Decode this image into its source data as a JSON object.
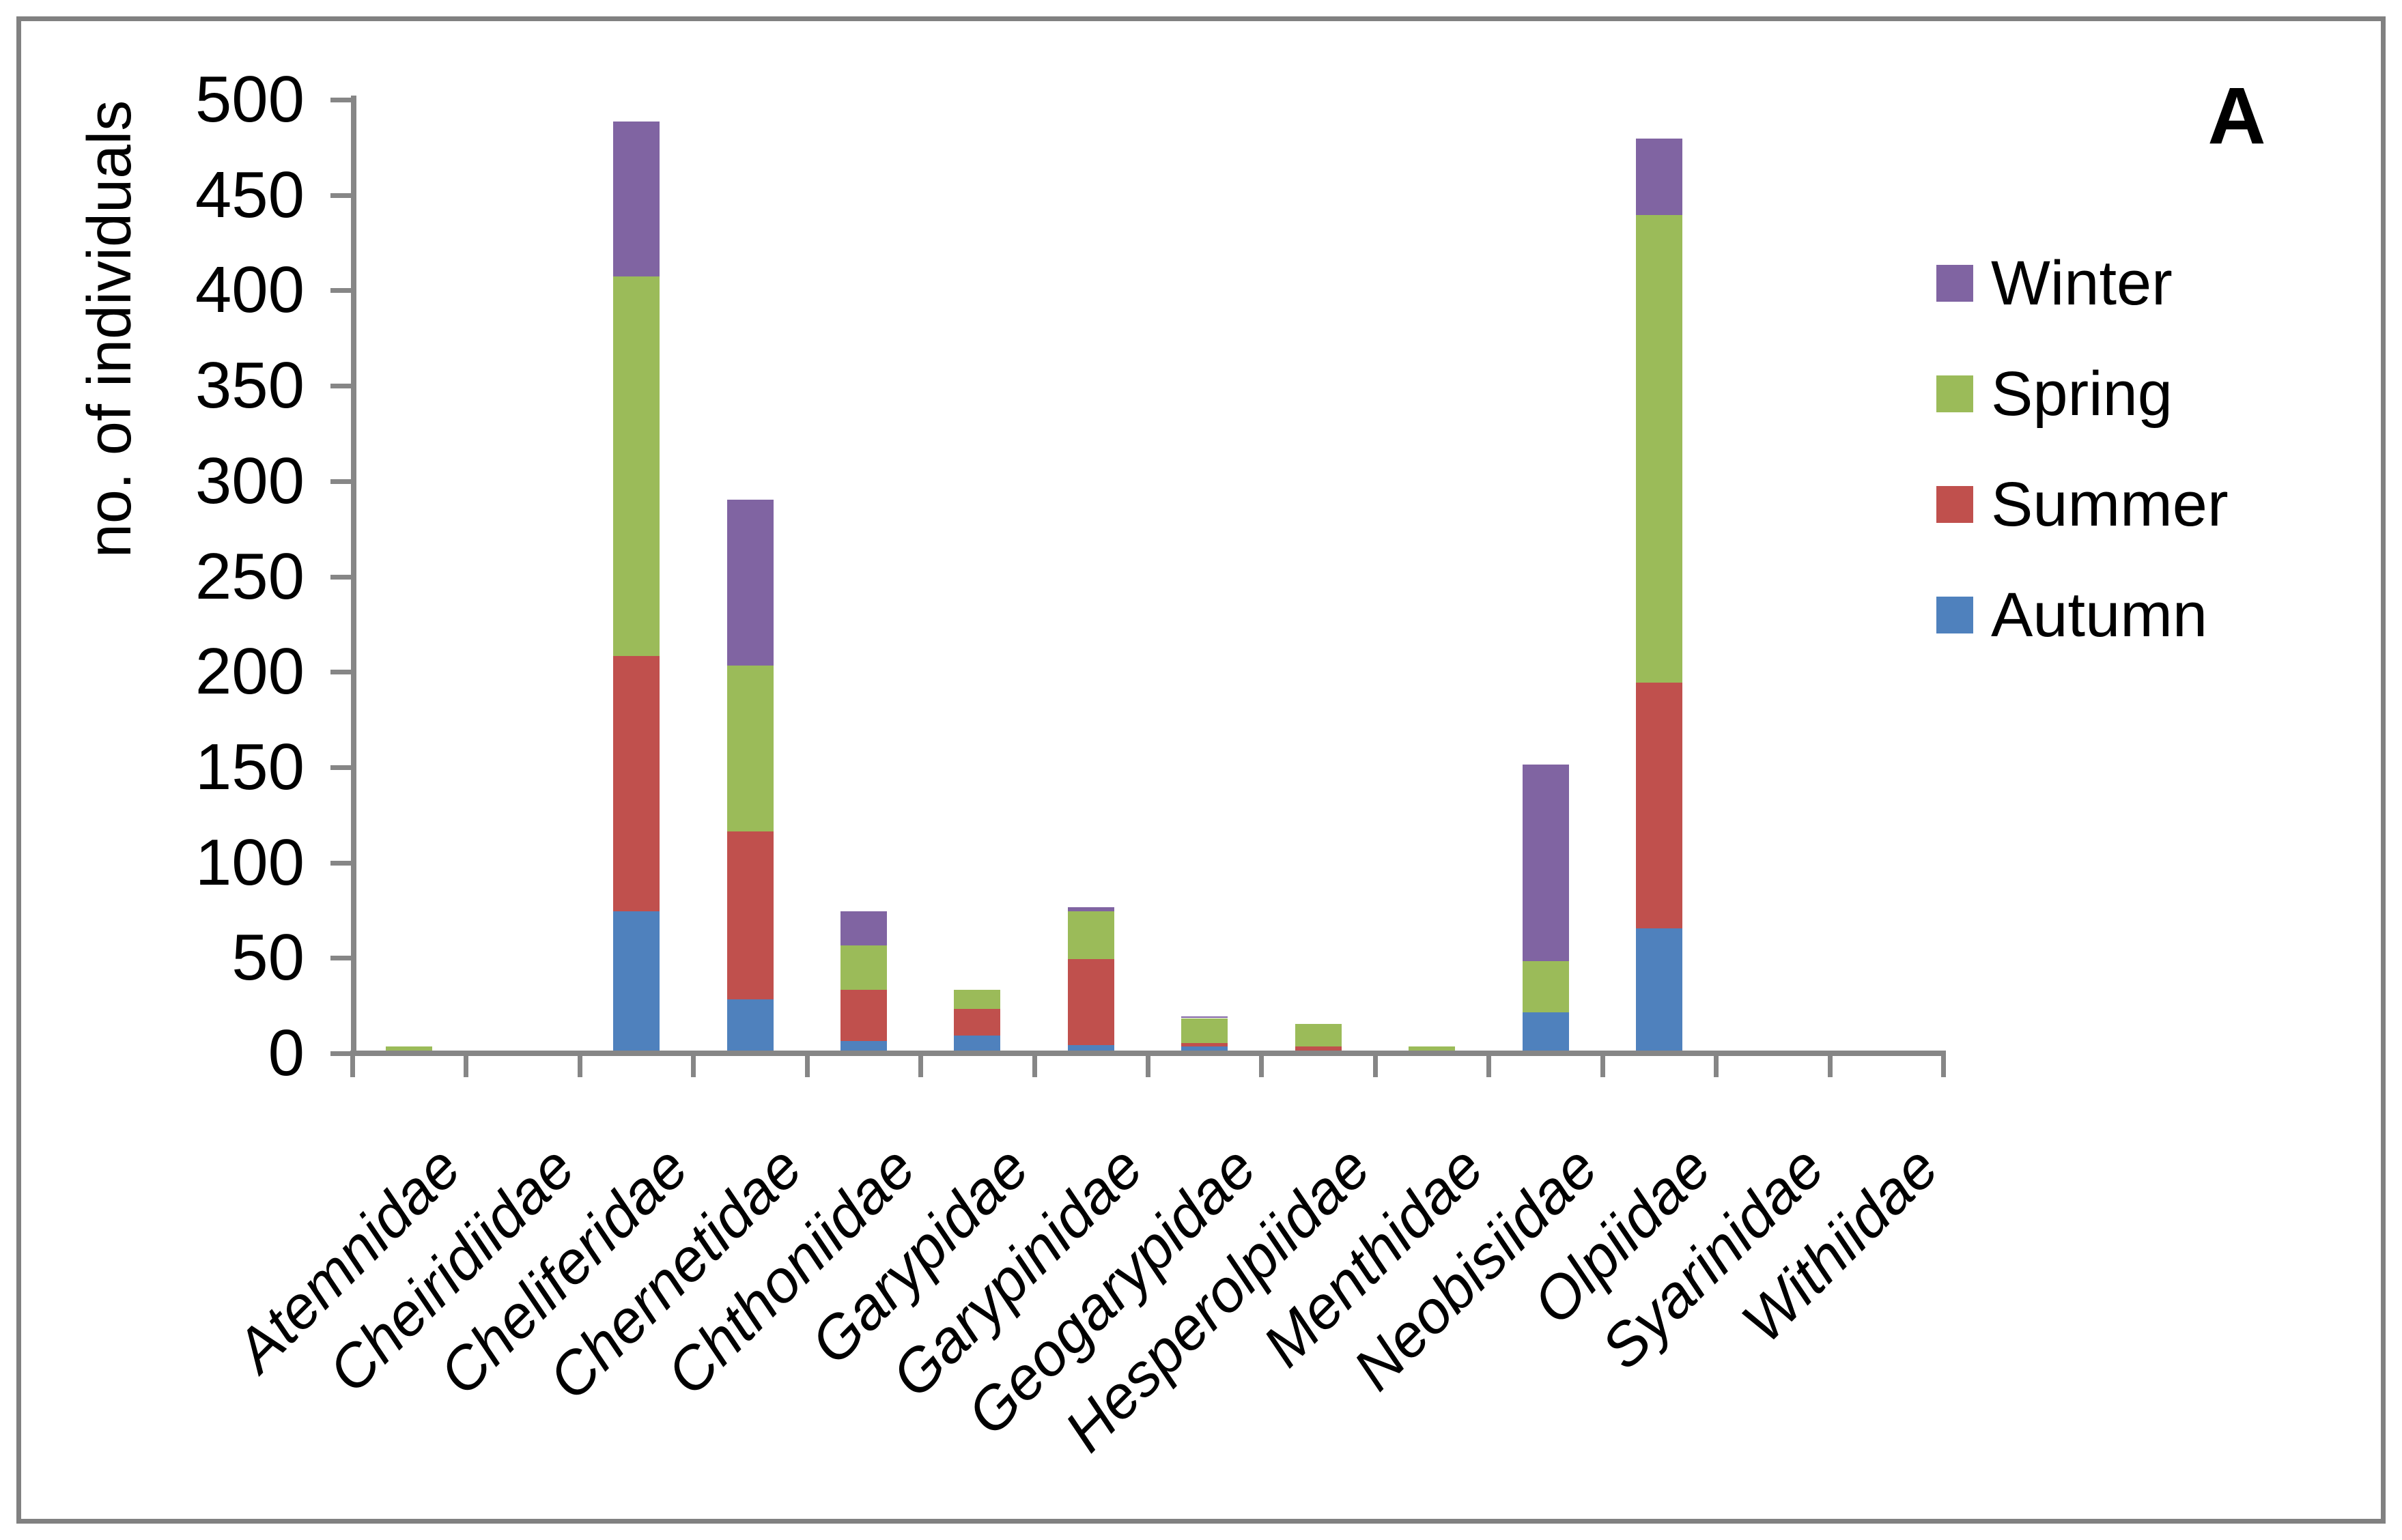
{
  "figure_label": "A",
  "y_axis": {
    "title": "no. of individuals",
    "min": 0,
    "max": 500,
    "tick_step": 50,
    "tick_labels": [
      "0",
      "50",
      "100",
      "150",
      "200",
      "250",
      "300",
      "350",
      "400",
      "450",
      "500"
    ]
  },
  "legend": {
    "position": "right",
    "entries": [
      {
        "label": "Winter",
        "color": "#8064A2"
      },
      {
        "label": "Spring",
        "color": "#9BBB59"
      },
      {
        "label": "Summer",
        "color": "#C0504D"
      },
      {
        "label": "Autumn",
        "color": "#4F81BD"
      }
    ]
  },
  "colors": {
    "axis": "#868686",
    "border": "#818181",
    "text": "#000000",
    "background": "#FFFFFF"
  },
  "chart_data": {
    "type": "bar",
    "stacked": true,
    "title": "",
    "xlabel": "",
    "ylabel": "no. of individuals",
    "ylim": [
      0,
      500
    ],
    "grid": false,
    "legend_position": "right",
    "legend_order_top_to_bottom": [
      "Winter",
      "Spring",
      "Summer",
      "Autumn"
    ],
    "stack_order_bottom_to_top": [
      "Autumn",
      "Summer",
      "Spring",
      "Winter"
    ],
    "categories": [
      "Atemnidae",
      "Cheiridiidae",
      "Cheliferidae",
      "Chernetidae",
      "Chthoniidae",
      "Garypidae",
      "Garypinidae",
      "Geogarypidae",
      "Hesperolpiidae",
      "Menthidae",
      "Neobisiidae",
      "Olpiidae",
      "Syarinidae",
      "Withiidae"
    ],
    "series": [
      {
        "name": "Autumn",
        "color": "#4F81BD",
        "values": [
          0,
          0,
          73,
          27,
          5,
          8,
          3,
          2,
          0,
          0,
          20,
          64,
          0,
          0
        ]
      },
      {
        "name": "Summer",
        "color": "#C0504D",
        "values": [
          0,
          0,
          134,
          88,
          27,
          14,
          45,
          2,
          2,
          0,
          0,
          129,
          0,
          0
        ]
      },
      {
        "name": "Spring",
        "color": "#9BBB59",
        "values": [
          2,
          0,
          199,
          87,
          23,
          10,
          25,
          13,
          12,
          2,
          27,
          245,
          0,
          0
        ]
      },
      {
        "name": "Winter",
        "color": "#8064A2",
        "values": [
          0,
          0,
          81,
          87,
          18,
          0,
          2,
          1,
          0,
          0,
          103,
          40,
          0,
          0
        ]
      }
    ]
  }
}
